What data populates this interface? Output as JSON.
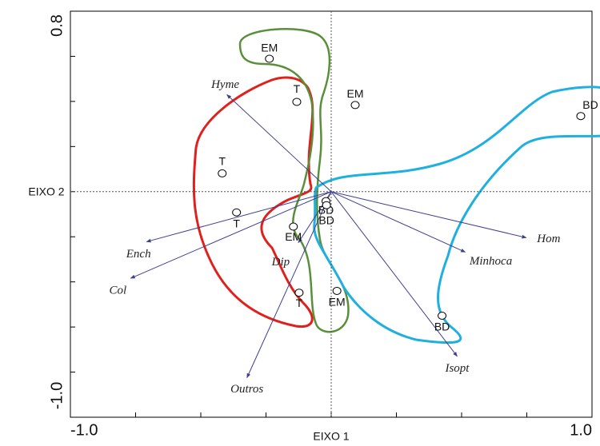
{
  "chart_data": {
    "type": "biplot",
    "x_label": "EIXO 1",
    "y_label": "EIXO 2",
    "xlim": [
      -1,
      1
    ],
    "ylim": [
      -1,
      0.8
    ],
    "xticks": [
      {
        "value": -1,
        "label": "-1.0"
      },
      {
        "value": 1,
        "label": "1.0"
      }
    ],
    "yticks": [
      {
        "value": -1,
        "label": "-1.0"
      },
      {
        "value": 0.8,
        "label": "0.8"
      }
    ],
    "xminorticks": [
      -0.75,
      -0.5,
      -0.25,
      0,
      0.25,
      0.5,
      0.75
    ],
    "yminorticks": [
      -0.8,
      -0.6,
      -0.4,
      -0.2,
      0,
      0.2,
      0.4,
      0.6
    ],
    "points": {
      "labels": [
        "EM",
        "T",
        "EM",
        "BD",
        "T",
        "T",
        "BD",
        "BD",
        "EM",
        "T",
        "EM",
        "BD"
      ],
      "x": [
        -0.237,
        -0.132,
        0.092,
        0.957,
        -0.418,
        -0.363,
        -0.02,
        -0.018,
        -0.145,
        -0.123,
        0.022,
        0.425
      ],
      "y": [
        0.589,
        0.398,
        0.384,
        0.335,
        0.081,
        -0.092,
        -0.042,
        -0.06,
        -0.155,
        -0.448,
        -0.44,
        -0.55
      ]
    },
    "vectors": {
      "labels": [
        "Hyme",
        "Ench",
        "Col",
        "Dip",
        "Outros",
        "Hom",
        "Minhoca",
        "Isopt"
      ],
      "x": [
        -0.4,
        -0.708,
        -0.769,
        -0.126,
        -0.323,
        0.748,
        0.514,
        0.483
      ],
      "y": [
        0.43,
        -0.222,
        -0.384,
        -0.226,
        -0.825,
        -0.204,
        -0.268,
        -0.73
      ],
      "color": "#3f3f8f"
    },
    "origin_lines": true
  }
}
